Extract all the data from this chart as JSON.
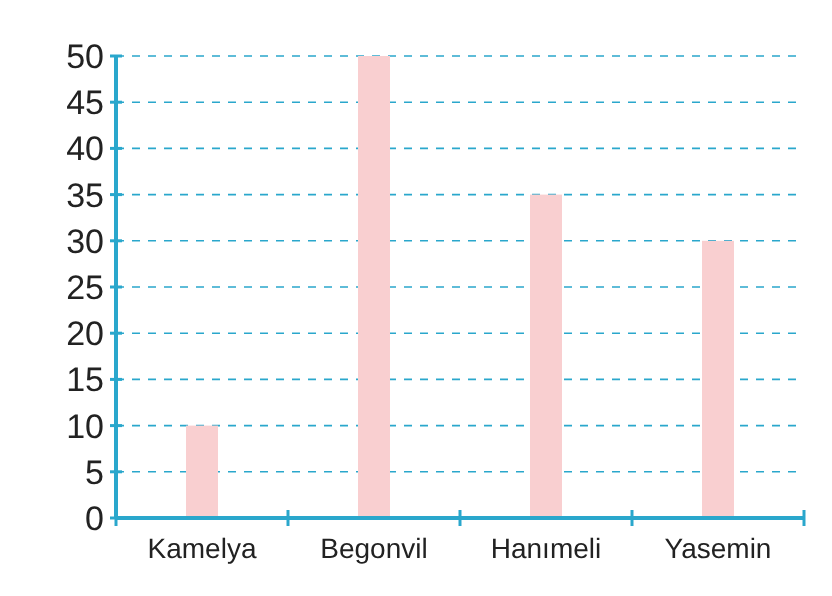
{
  "chart_data": {
    "type": "bar",
    "categories": [
      "Kamelya",
      "Begonvil",
      "Hanımeli",
      "Yasemin"
    ],
    "values": [
      10,
      50,
      35,
      30
    ],
    "color": "#f9cfd0",
    "ylim": [
      0,
      50
    ],
    "yticks": [
      0,
      5,
      10,
      15,
      20,
      25,
      30,
      35,
      40,
      45,
      50
    ],
    "grid": "y"
  }
}
